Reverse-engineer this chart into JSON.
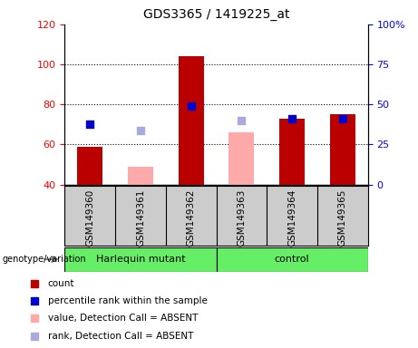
{
  "title": "GDS3365 / 1419225_at",
  "samples": [
    "GSM149360",
    "GSM149361",
    "GSM149362",
    "GSM149363",
    "GSM149364",
    "GSM149365"
  ],
  "count_values": [
    59,
    null,
    104,
    null,
    73,
    75
  ],
  "count_absent_values": [
    null,
    49,
    null,
    66,
    null,
    null
  ],
  "rank_values": [
    70,
    null,
    79,
    null,
    73,
    73
  ],
  "rank_absent_values": [
    null,
    67,
    null,
    72,
    null,
    null
  ],
  "ymin": 40,
  "ymax": 120,
  "y_ticks_left": [
    40,
    60,
    80,
    100,
    120
  ],
  "y_ticks_right": [
    0,
    25,
    50,
    75,
    100
  ],
  "groups": [
    {
      "label": "Harlequin mutant",
      "samples": [
        0,
        1,
        2
      ],
      "color": "#66EE66"
    },
    {
      "label": "control",
      "samples": [
        3,
        4,
        5
      ],
      "color": "#66EE66"
    }
  ],
  "bar_color_present": "#BB0000",
  "bar_color_absent": "#FFAAAA",
  "rank_color_present": "#0000CC",
  "rank_color_absent": "#AAAADD",
  "bar_width": 0.5,
  "rank_marker_size": 35,
  "background_plot": "#FFFFFF",
  "background_label": "#CCCCCC",
  "label_fontsize": 7.5,
  "title_fontsize": 10
}
